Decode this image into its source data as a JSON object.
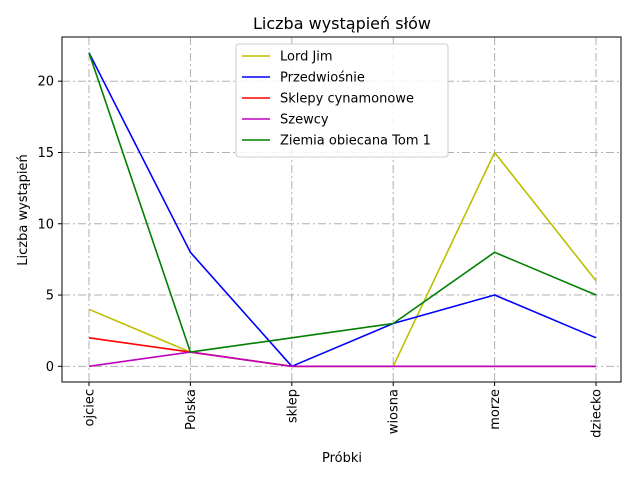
{
  "chart_data": {
    "type": "line",
    "title": "Liczba wystąpień słów",
    "xlabel": "Próbki",
    "ylabel": "Liczba wystąpień",
    "categories": [
      "ojciec",
      "Polska",
      "sklep",
      "wiosna",
      "morze",
      "dziecko"
    ],
    "ylim": [
      -1.1,
      23.1
    ],
    "yticks": [
      0,
      5,
      10,
      15,
      20
    ],
    "grid": true,
    "legend_position": "top-center",
    "series": [
      {
        "name": "Lord Jim",
        "color": "#bfbf00",
        "values": [
          4,
          1,
          0,
          0,
          15,
          6
        ]
      },
      {
        "name": "Przedwiośnie",
        "color": "#0000ff",
        "values": [
          22,
          8,
          0,
          3,
          5,
          2
        ]
      },
      {
        "name": "Sklepy cynamonowe",
        "color": "#ff0000",
        "values": [
          2,
          1,
          0,
          0,
          0,
          0
        ]
      },
      {
        "name": "Szewcy",
        "color": "#bf00bf",
        "values": [
          0,
          1,
          0,
          0,
          0,
          0
        ]
      },
      {
        "name": "Ziemia obiecana Tom 1",
        "color": "#008000",
        "values": [
          22,
          1,
          2,
          3,
          8,
          5
        ]
      }
    ]
  }
}
